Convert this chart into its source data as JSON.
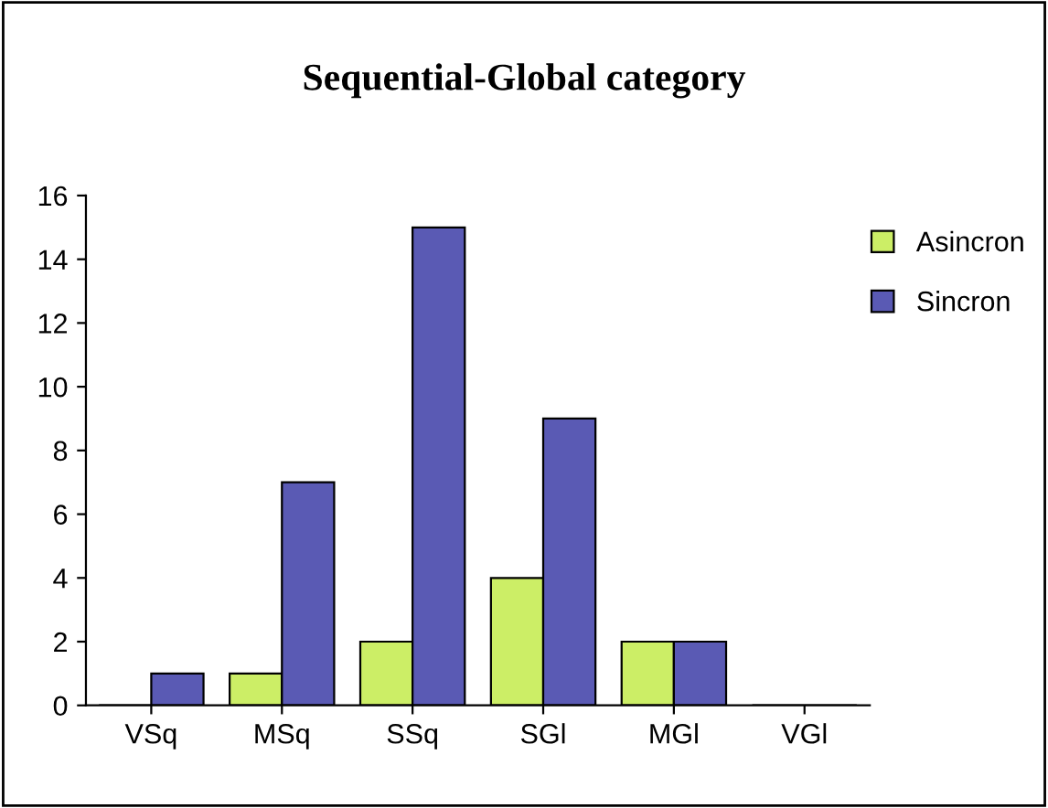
{
  "chart_data": {
    "type": "bar",
    "title": "Sequential-Global category",
    "categories": [
      "VSq",
      "MSq",
      "SSq",
      "SGl",
      "MGl",
      "VGl"
    ],
    "series": [
      {
        "name": "Asincron",
        "color": "#ccee66",
        "values": [
          0,
          1,
          2,
          4,
          2,
          0
        ]
      },
      {
        "name": "Sincron",
        "color": "#5a5ab4",
        "values": [
          1,
          7,
          15,
          9,
          2,
          0
        ]
      }
    ],
    "ylim": [
      0,
      16
    ],
    "yticks": [
      0,
      2,
      4,
      6,
      8,
      10,
      12,
      14,
      16
    ],
    "grid": false,
    "legend": "right"
  }
}
